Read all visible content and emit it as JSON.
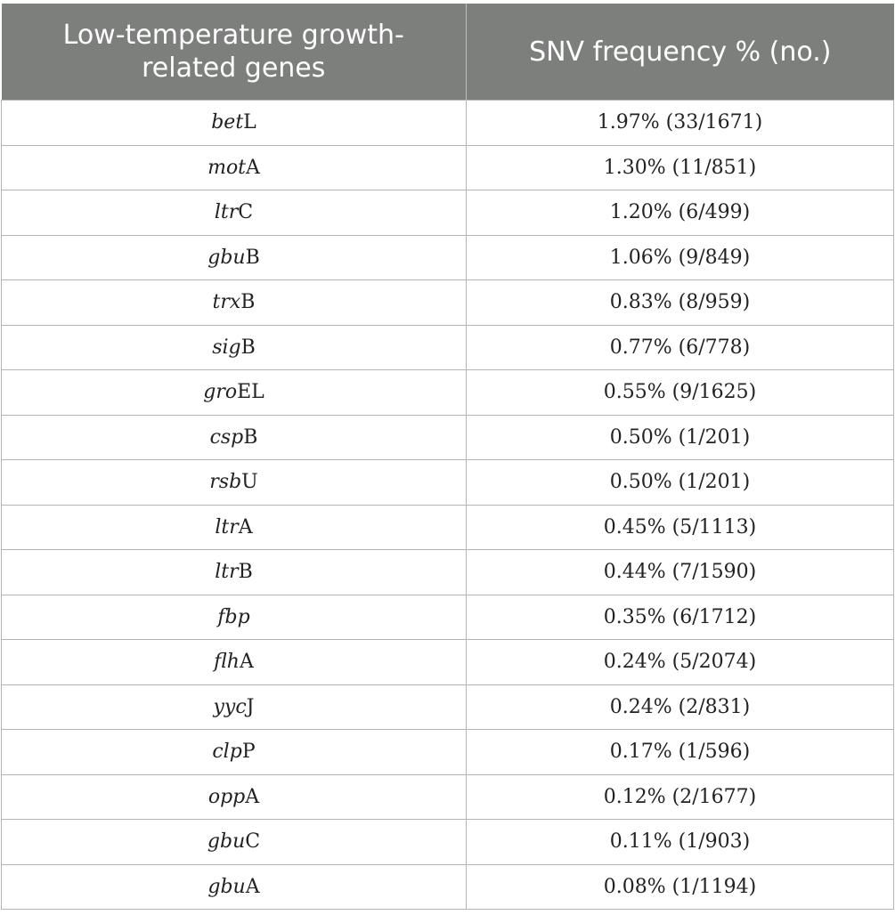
{
  "header": {
    "col1": "Low-temperature growth-related genes",
    "col2": "SNV frequency % (no.)"
  },
  "rows": [
    {
      "italic": "bet",
      "suffix": "L",
      "freq": "1.97% (33/1671)"
    },
    {
      "italic": "mot",
      "suffix": "A",
      "freq": "1.30% (11/851)"
    },
    {
      "italic": "ltr",
      "suffix": "C",
      "freq": "1.20% (6/499)"
    },
    {
      "italic": "gbu",
      "suffix": "B",
      "freq": "1.06% (9/849)"
    },
    {
      "italic": "trx",
      "suffix": "B",
      "freq": "0.83% (8/959)"
    },
    {
      "italic": "sig",
      "suffix": "B",
      "freq": "0.77% (6/778)"
    },
    {
      "italic": "gro",
      "suffix": "EL",
      "freq": "0.55% (9/1625)"
    },
    {
      "italic": "csp",
      "suffix": "B",
      "freq": "0.50% (1/201)"
    },
    {
      "italic": "rsb",
      "suffix": "U",
      "freq": "0.50% (1/201)"
    },
    {
      "italic": "ltr",
      "suffix": "A",
      "freq": "0.45% (5/1113)"
    },
    {
      "italic": "ltr",
      "suffix": "B",
      "freq": "0.44% (7/1590)"
    },
    {
      "italic": "fbp",
      "suffix": "",
      "freq": "0.35% (6/1712)"
    },
    {
      "italic": "flh",
      "suffix": "A",
      "freq": "0.24% (5/2074)"
    },
    {
      "italic": "yyc",
      "suffix": "J",
      "freq": "0.24% (2/831)"
    },
    {
      "italic": "clp",
      "suffix": "P",
      "freq": "0.17% (1/596)"
    },
    {
      "italic": "opp",
      "suffix": "A",
      "freq": "0.12% (2/1677)"
    },
    {
      "italic": "gbu",
      "suffix": "C",
      "freq": "0.11% (1/903)"
    },
    {
      "italic": "gbu",
      "suffix": "A",
      "freq": "0.08% (1/1194)"
    }
  ]
}
